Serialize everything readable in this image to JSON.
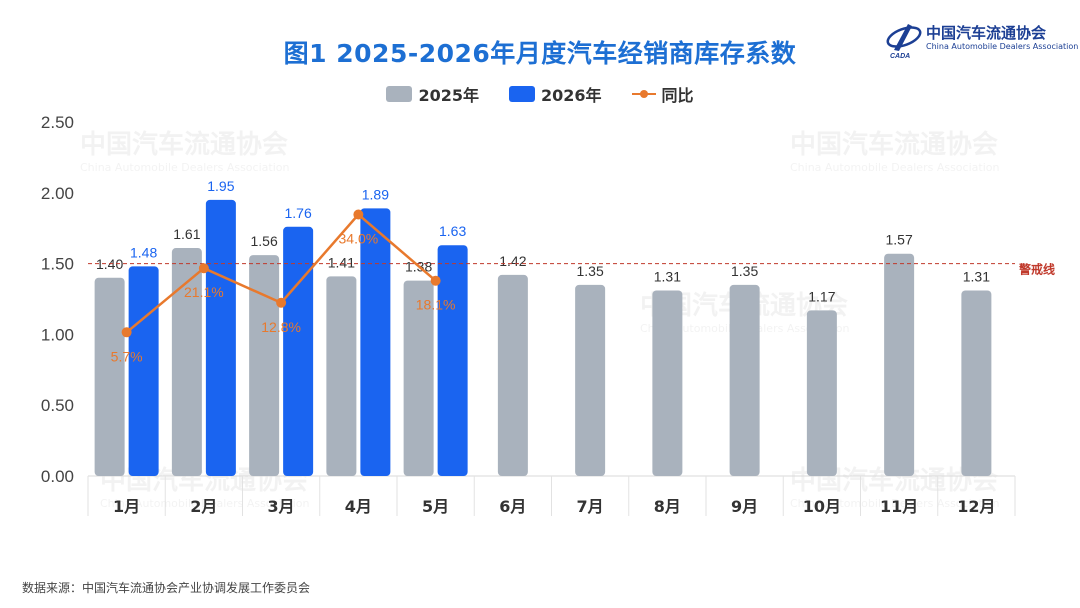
{
  "title": "图1  2025-2026年月度汽车经销商库存系数",
  "logo": {
    "cn": "中国汽车流通协会",
    "en": "China Automobile Dealers Association"
  },
  "source": "数据来源：中国汽车流通协会产业协调发展工作委员会",
  "watermark": {
    "cn": "中国汽车流通协会",
    "en": "China Automobile Dealers Association"
  },
  "legend": [
    "2025年",
    "2026年",
    "同比"
  ],
  "colors": {
    "s2025": "#a9b2bd",
    "s2026": "#1a64f0",
    "yoy": "#e8792d",
    "warning": "#c0392b",
    "title": "#1d6fd3"
  },
  "chart_data": {
    "type": "bar",
    "categories": [
      "1月",
      "2月",
      "3月",
      "4月",
      "5月",
      "6月",
      "7月",
      "8月",
      "9月",
      "10月",
      "11月",
      "12月"
    ],
    "series": [
      {
        "name": "2025年",
        "values": [
          1.4,
          1.61,
          1.56,
          1.41,
          1.38,
          1.42,
          1.35,
          1.31,
          1.35,
          1.17,
          1.57,
          1.31
        ]
      },
      {
        "name": "2026年",
        "values": [
          1.48,
          1.95,
          1.76,
          1.89,
          1.63,
          null,
          null,
          null,
          null,
          null,
          null,
          null
        ]
      }
    ],
    "line": {
      "name": "同比",
      "values": [
        5.7,
        21.1,
        12.8,
        34.0,
        18.1
      ],
      "labels": [
        "5.7%",
        "21.1%",
        "12.8%",
        "34.0%",
        "18.1%"
      ]
    },
    "warning_line": {
      "value": 1.5,
      "label": "警戒线"
    },
    "yticks": [
      "0.00",
      "0.50",
      "1.00",
      "1.50",
      "2.00",
      "2.50"
    ],
    "ylim": [
      0,
      2.5
    ],
    "grid": false
  }
}
